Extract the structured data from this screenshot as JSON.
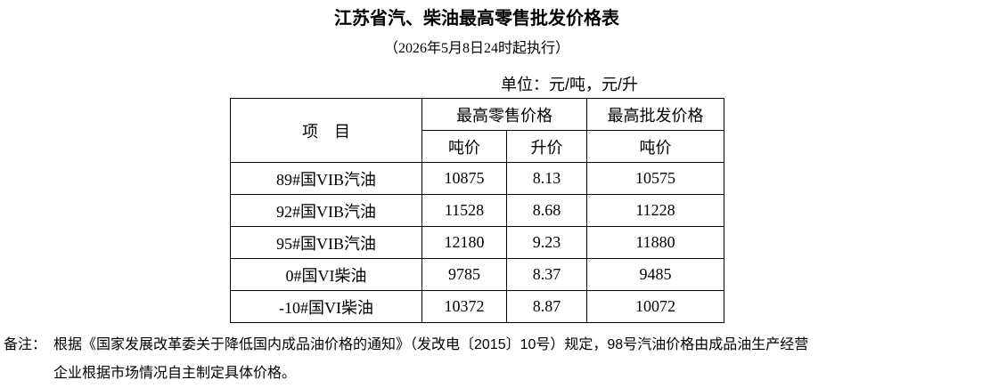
{
  "header": {
    "title": "江苏省汽、柴油最高零售批发价格表",
    "subtitle": "（2026年5月8日24时起执行）",
    "unit": "单位：元/吨，元/升"
  },
  "table": {
    "columns": {
      "item": "项　目",
      "retail": "最高零售价格",
      "wholesale": "最高批发价格",
      "retail_ton": "吨价",
      "retail_liter": "升价",
      "wholesale_ton": "吨价"
    },
    "rows": [
      [
        "89#国VIB汽油",
        "10875",
        "8.13",
        "10575"
      ],
      [
        "92#国VIB汽油",
        "11528",
        "8.68",
        "11228"
      ],
      [
        "95#国VIB汽油",
        "12180",
        "9.23",
        "11880"
      ],
      [
        "0#国VI柴油",
        "9785",
        "8.37",
        "9485"
      ],
      [
        "-10#国VI柴油",
        "10372",
        "8.87",
        "10072"
      ]
    ]
  },
  "note": {
    "label": "备注：",
    "lines": [
      "根据《国家发展改革委关于降低国内成品油价格的通知》（发改电〔2015〕10号）规定，98号汽油价格由成品油生产经营",
      "企业根据市场情况自主制定具体价格。"
    ]
  }
}
